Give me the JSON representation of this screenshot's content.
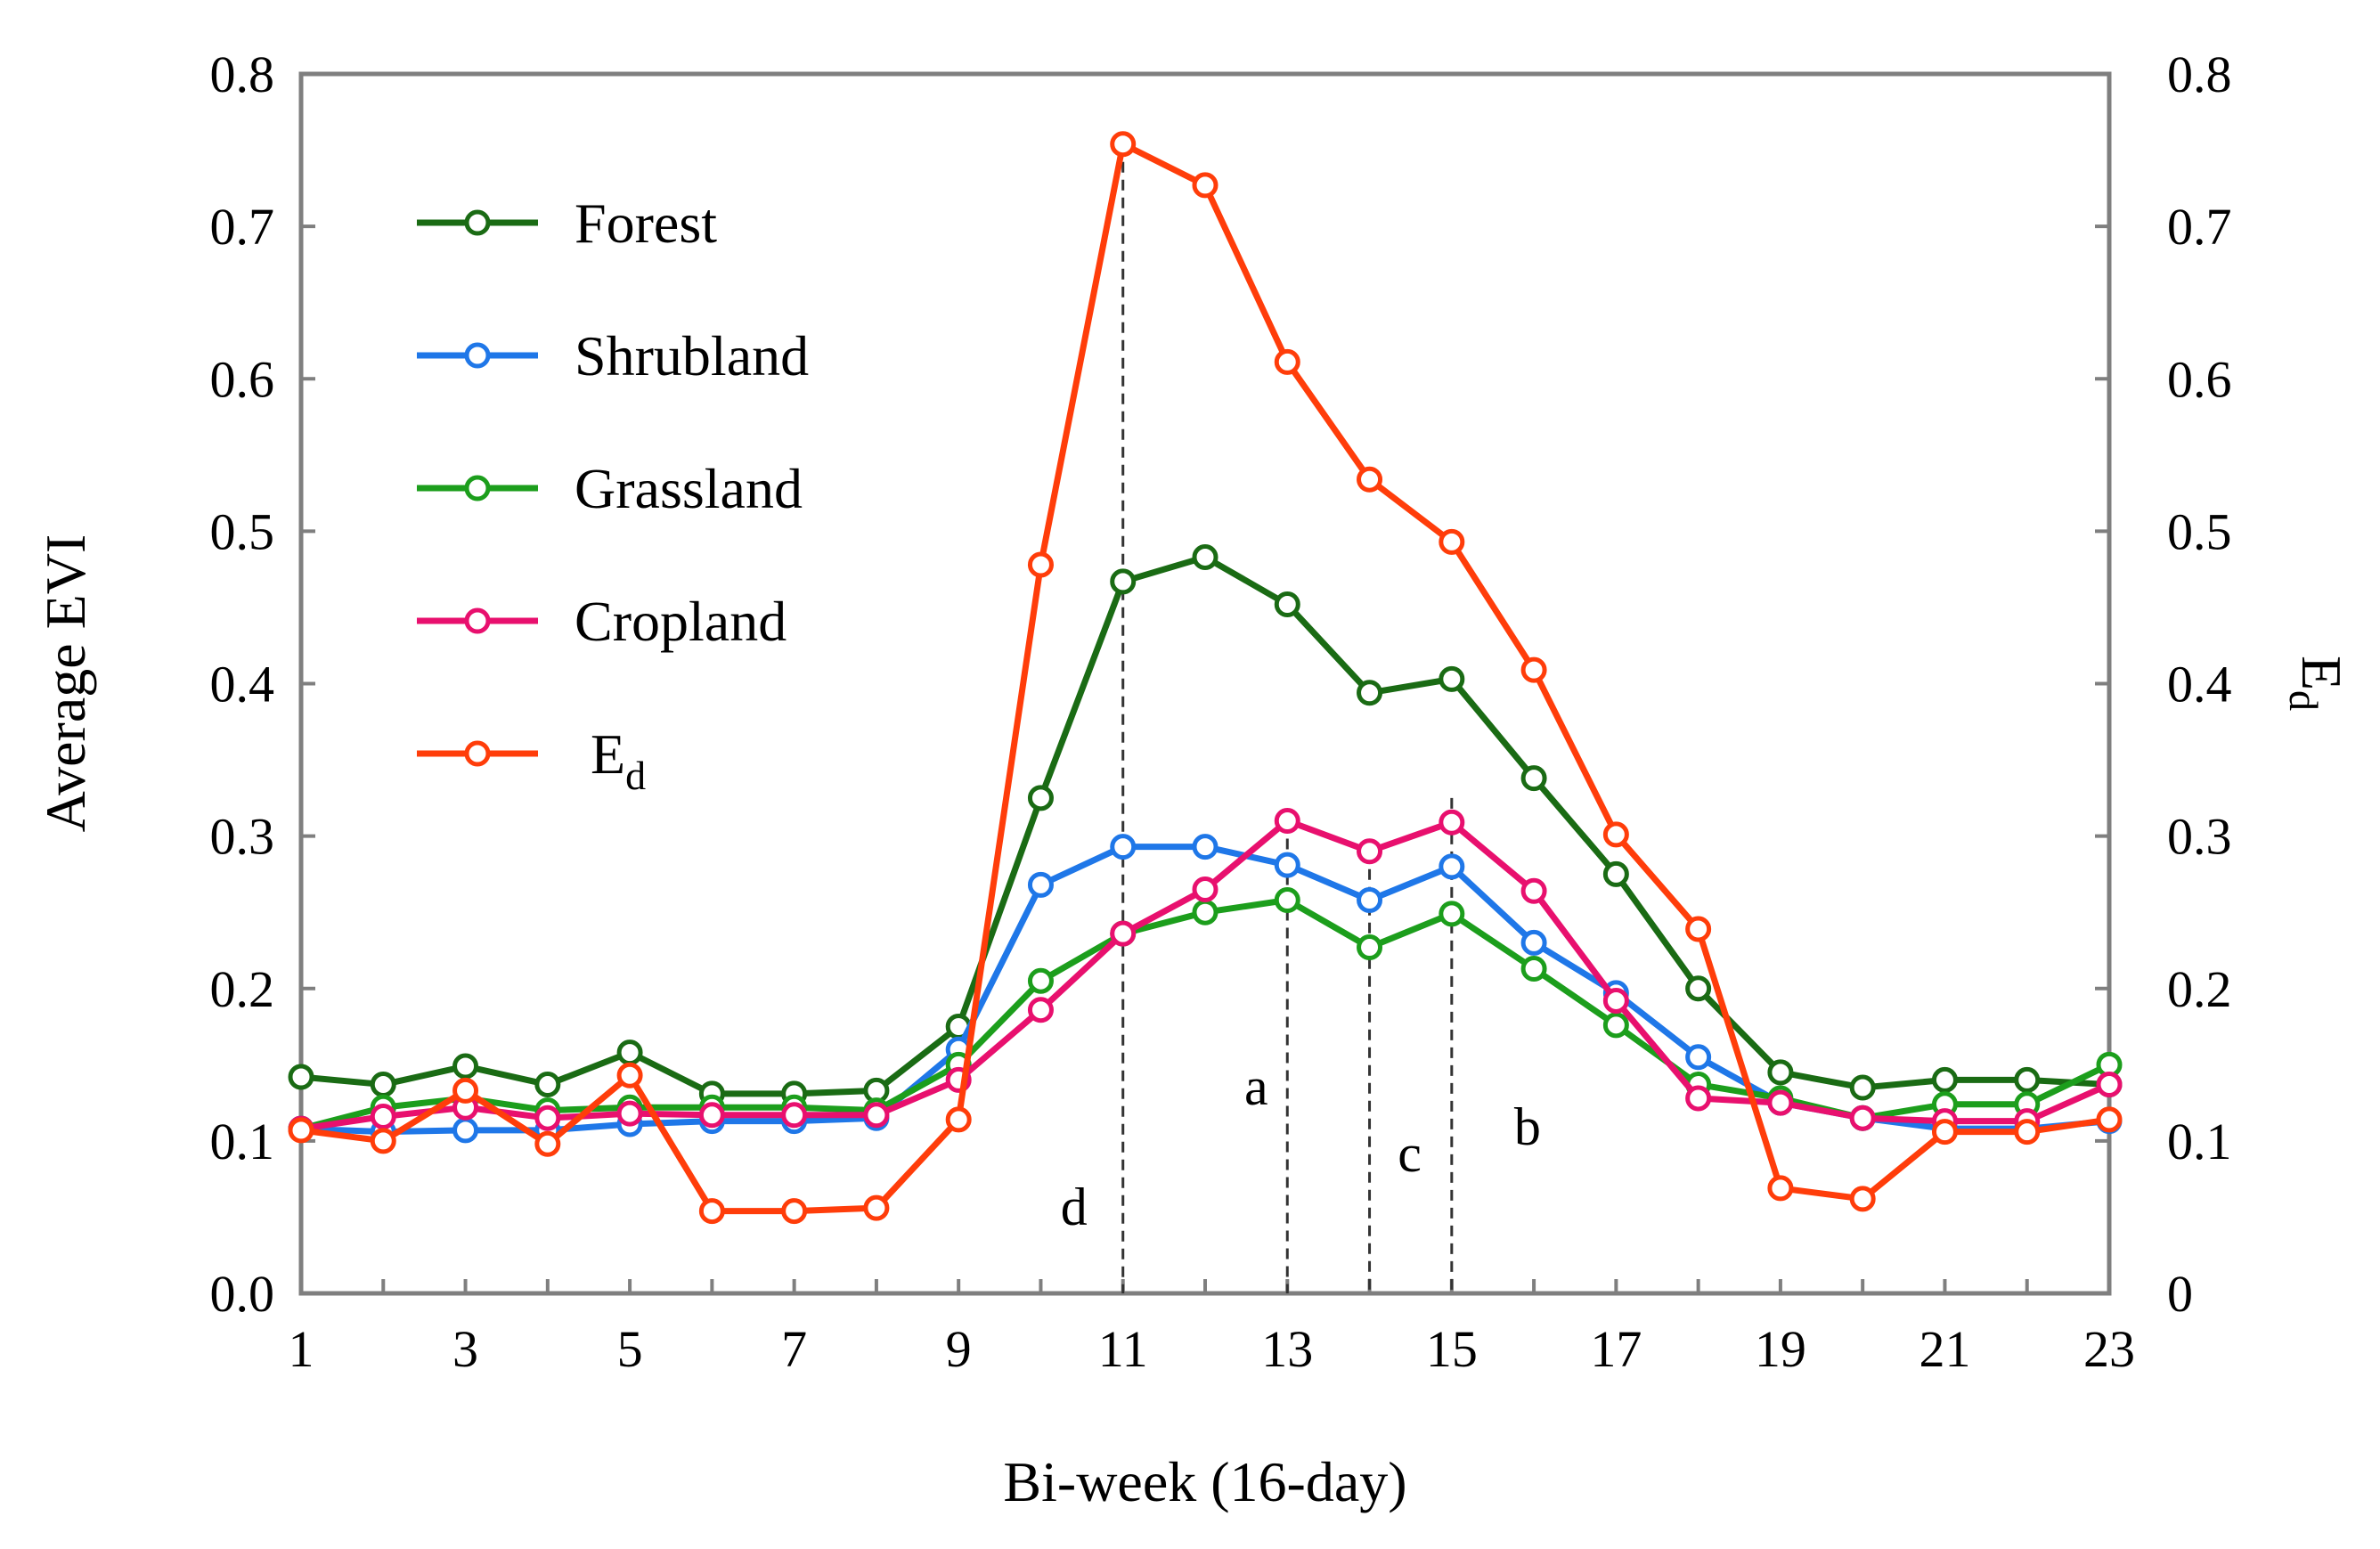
{
  "chart_data": {
    "type": "line",
    "xlabel": "Bi-week (16-day)",
    "ylabel": "Average EVI",
    "y2label": "E",
    "y2label_sub": "d",
    "xlim": [
      1,
      23
    ],
    "ylim": [
      0,
      0.8
    ],
    "y2lim": [
      0,
      0.8
    ],
    "x_ticks": [
      1,
      2,
      3,
      4,
      5,
      6,
      7,
      8,
      9,
      10,
      11,
      12,
      13,
      14,
      15,
      16,
      17,
      18,
      19,
      20,
      21,
      22,
      23
    ],
    "x_tick_labels": [
      "1",
      "3",
      "5",
      "7",
      "9",
      "11",
      "13",
      "15",
      "17",
      "19",
      "21",
      "23"
    ],
    "y_tick_labels": [
      "0.0",
      "0.1",
      "0.2",
      "0.3",
      "0.4",
      "0.5",
      "0.6",
      "0.7",
      "0.8"
    ],
    "y2_tick_labels": [
      "0",
      "0.1",
      "0.2",
      "0.3",
      "0.4",
      "0.5",
      "0.6",
      "0.7",
      "0.8"
    ],
    "x": [
      1,
      2,
      3,
      4,
      5,
      6,
      7,
      8,
      9,
      10,
      11,
      12,
      13,
      14,
      15,
      16,
      17,
      18,
      19,
      20,
      21,
      22,
      23
    ],
    "series": [
      {
        "name": "Forest",
        "color": "#1a6b14",
        "values": [
          0.142,
          0.137,
          0.149,
          0.137,
          0.158,
          0.131,
          0.131,
          0.133,
          0.175,
          0.325,
          0.467,
          0.483,
          0.452,
          0.394,
          0.403,
          0.338,
          0.275,
          0.2,
          0.145,
          0.135,
          0.14,
          0.14,
          0.137
        ]
      },
      {
        "name": "Shrubland",
        "color": "#1f77e8",
        "values": [
          0.108,
          0.106,
          0.107,
          0.107,
          0.111,
          0.113,
          0.113,
          0.115,
          0.16,
          0.268,
          0.293,
          0.293,
          0.281,
          0.258,
          0.28,
          0.23,
          0.197,
          0.155,
          0.125,
          0.115,
          0.108,
          0.108,
          0.113
        ]
      },
      {
        "name": "Grassland",
        "color": "#1c9e1c",
        "values": [
          0.108,
          0.122,
          0.128,
          0.12,
          0.122,
          0.122,
          0.122,
          0.12,
          0.15,
          0.205,
          0.236,
          0.25,
          0.258,
          0.227,
          0.249,
          0.213,
          0.176,
          0.137,
          0.128,
          0.115,
          0.124,
          0.124,
          0.15
        ]
      },
      {
        "name": "Cropland",
        "color": "#e8106e",
        "values": [
          0.108,
          0.116,
          0.122,
          0.115,
          0.118,
          0.117,
          0.117,
          0.117,
          0.14,
          0.186,
          0.236,
          0.265,
          0.31,
          0.29,
          0.309,
          0.264,
          0.192,
          0.128,
          0.125,
          0.115,
          0.113,
          0.113,
          0.137
        ]
      },
      {
        "name": "E",
        "name_sub": "d",
        "color": "#ff3d0a",
        "values": [
          0.107,
          0.1,
          0.133,
          0.098,
          0.143,
          0.054,
          0.054,
          0.056,
          0.114,
          0.478,
          0.754,
          0.727,
          0.611,
          0.534,
          0.493,
          0.409,
          0.301,
          0.239,
          0.069,
          0.062,
          0.106,
          0.106,
          0.114
        ]
      }
    ],
    "vertical_markers": [
      {
        "x": 11,
        "label": "d"
      },
      {
        "x": 13,
        "label": "a"
      },
      {
        "x": 14,
        "label": "c"
      },
      {
        "x": 15,
        "label": "b"
      }
    ],
    "legend_position": "top-left"
  }
}
